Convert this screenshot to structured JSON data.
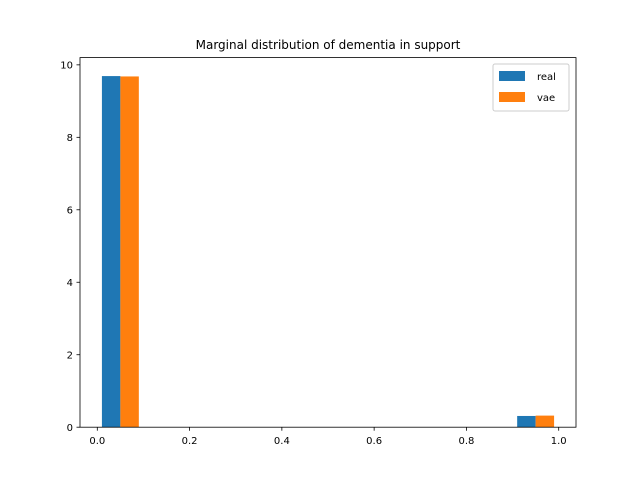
{
  "chart_data": {
    "type": "bar",
    "title": "Marginal distribution of dementia in support",
    "xlabel": "",
    "ylabel": "",
    "xlim": [
      -0.0375,
      1.0375
    ],
    "ylim": [
      0,
      10.2
    ],
    "xticks": [
      0.0,
      0.2,
      0.4,
      0.6,
      0.8,
      1.0
    ],
    "xtick_labels": [
      "0.0",
      "0.2",
      "0.4",
      "0.6",
      "0.8",
      "1.0"
    ],
    "yticks": [
      0,
      2,
      4,
      6,
      8,
      10
    ],
    "ytick_labels": [
      "0",
      "2",
      "4",
      "6",
      "8",
      "10"
    ],
    "bin_edges": [
      0.0,
      0.1,
      0.2,
      0.3,
      0.4,
      0.5,
      0.6,
      0.7,
      0.8,
      0.9,
      1.0
    ],
    "series": [
      {
        "name": "real",
        "color": "#1f77b4",
        "values": [
          9.69,
          0,
          0,
          0,
          0,
          0,
          0,
          0,
          0,
          0.31
        ]
      },
      {
        "name": "vae",
        "color": "#ff7f0e",
        "values": [
          9.68,
          0,
          0,
          0,
          0,
          0,
          0,
          0,
          0,
          0.32
        ]
      }
    ],
    "grid": false,
    "legend_position": "upper right"
  }
}
